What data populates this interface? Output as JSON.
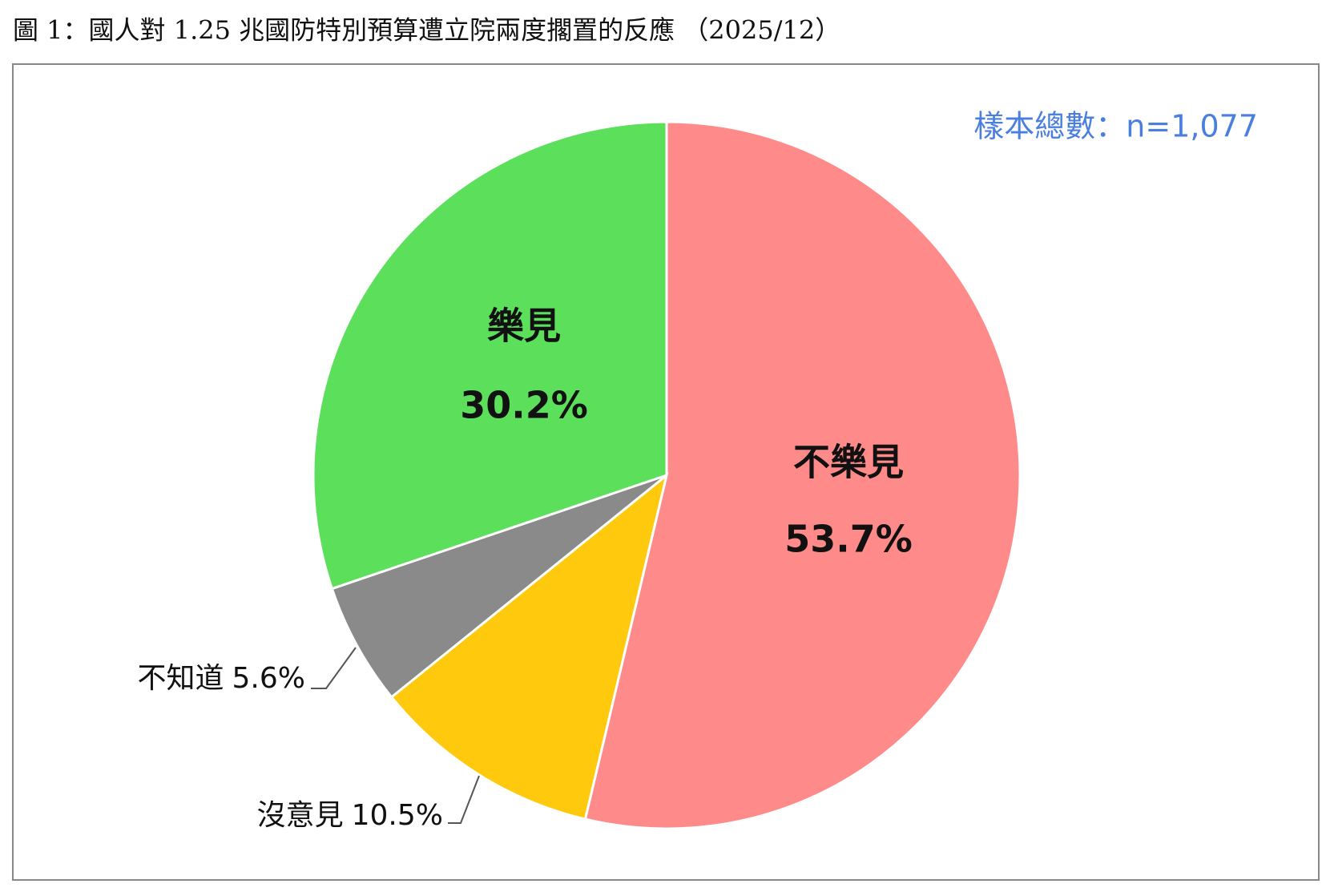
{
  "chart_data": {
    "type": "pie",
    "title": "圖 1：國人對 1.25 兆國防特別預算遭立院兩度擱置的反應 （2025/12）",
    "annotation": "樣本總數：n=1,077",
    "categories": [
      "不樂見",
      "沒意見",
      "不知道",
      "樂見"
    ],
    "values": [
      53.7,
      10.5,
      5.6,
      30.2
    ],
    "value_labels": [
      "53.7%",
      "10.5%",
      "5.6%",
      "30.2%"
    ],
    "colors": [
      "#ff8a8a",
      "#ffc90e",
      "#8a8a8a",
      "#5ce05c"
    ]
  }
}
